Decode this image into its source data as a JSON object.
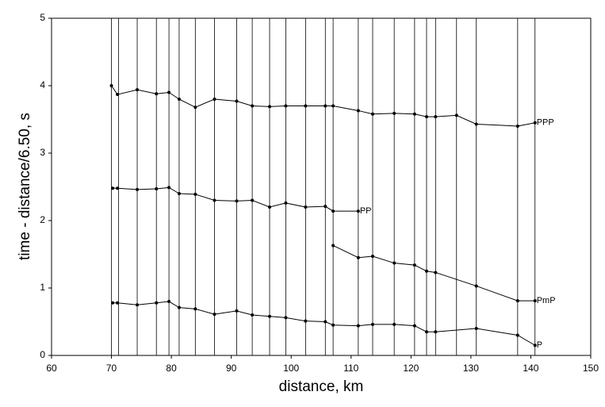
{
  "chart_data": {
    "type": "line",
    "xlabel": "distance, km",
    "ylabel": "time - distance/6.50, s",
    "xlim": [
      60,
      150
    ],
    "xticks": [
      60,
      70,
      80,
      90,
      100,
      110,
      120,
      130,
      140,
      150
    ],
    "ylim": [
      0,
      5
    ],
    "yticks": [
      0,
      1,
      2,
      3,
      4,
      5
    ],
    "traces": [
      70.0,
      71.2,
      74.3,
      77.5,
      79.6,
      81.3,
      84.0,
      87.2,
      90.9,
      93.5,
      96.4,
      99.1,
      102.4,
      105.7,
      107.0,
      111.2,
      113.6,
      117.2,
      120.6,
      122.6,
      124.1,
      127.6,
      130.9,
      137.8,
      140.7
    ],
    "series": [
      {
        "name": "P",
        "color": "#000000",
        "x": [
          70.2,
          71,
          74.3,
          77.5,
          79.6,
          81.3,
          84,
          87.2,
          90.9,
          93.5,
          96.4,
          99.1,
          102.4,
          105.7,
          107,
          111.2,
          113.6,
          117.2,
          120.6,
          122.6,
          124.1,
          130.9,
          137.8,
          140.7
        ],
        "values": [
          0.78,
          0.78,
          0.75,
          0.78,
          0.8,
          0.71,
          0.69,
          0.61,
          0.66,
          0.6,
          0.58,
          0.56,
          0.51,
          0.5,
          0.45,
          0.44,
          0.46,
          0.46,
          0.44,
          0.35,
          0.35,
          0.4,
          0.3,
          0.15
        ]
      },
      {
        "name": "PmP",
        "color": "#000000",
        "x": [
          107,
          111.2,
          113.6,
          117.2,
          120.6,
          122.6,
          124.1,
          130.9,
          137.8,
          140.7
        ],
        "values": [
          1.63,
          1.45,
          1.47,
          1.37,
          1.34,
          1.25,
          1.23,
          1.03,
          0.81,
          0.81
        ]
      },
      {
        "name": "PP",
        "color": "#000000",
        "x": [
          70.2,
          71,
          74.3,
          77.5,
          79.6,
          81.3,
          84,
          87.2,
          90.9,
          93.5,
          96.4,
          99.1,
          102.4,
          105.7,
          107,
          111.2
        ],
        "values": [
          2.48,
          2.48,
          2.46,
          2.47,
          2.49,
          2.4,
          2.39,
          2.3,
          2.29,
          2.3,
          2.2,
          2.26,
          2.2,
          2.21,
          2.14,
          2.14
        ]
      },
      {
        "name": "PPP",
        "color": "#000000",
        "x": [
          70,
          71,
          74.3,
          77.5,
          79.6,
          81.3,
          84,
          87.2,
          90.9,
          93.5,
          96.4,
          99.1,
          102.4,
          105.7,
          107,
          111.2,
          113.6,
          117.2,
          120.6,
          122.6,
          124.1,
          127.6,
          130.9,
          137.8,
          140.7
        ],
        "values": [
          4.0,
          3.87,
          3.94,
          3.88,
          3.9,
          3.8,
          3.68,
          3.8,
          3.77,
          3.7,
          3.69,
          3.7,
          3.7,
          3.7,
          3.7,
          3.63,
          3.58,
          3.59,
          3.58,
          3.54,
          3.54,
          3.56,
          3.43,
          3.4,
          3.45
        ]
      }
    ]
  }
}
